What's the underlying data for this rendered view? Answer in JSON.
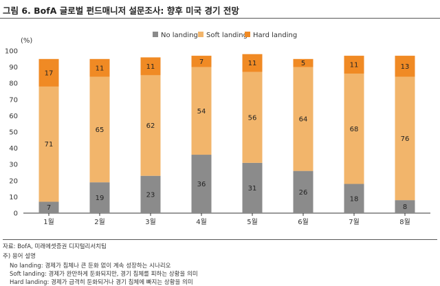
{
  "figure": {
    "title": "그림 6. BofA 글로벌 펀드매니저 설문조사: 향후 미국 경기 전망"
  },
  "chart_data": {
    "type": "stacked-bar",
    "categories": [
      "1월",
      "2월",
      "3월",
      "4월",
      "5월",
      "6월",
      "7월",
      "8월"
    ],
    "series": [
      {
        "name": "No landing",
        "color": "#8b8b8b",
        "values": [
          7,
          19,
          23,
          36,
          31,
          26,
          18,
          8
        ]
      },
      {
        "name": "Soft landing",
        "color": "#f2b56b",
        "values": [
          71,
          65,
          62,
          54,
          56,
          64,
          68,
          76
        ]
      },
      {
        "name": "Hard landing",
        "color": "#f08a24",
        "values": [
          17,
          11,
          11,
          7,
          11,
          5,
          11,
          13
        ]
      }
    ],
    "ylabel": "(%)",
    "ylim": [
      0,
      100
    ],
    "yticks": [
      0,
      10,
      20,
      30,
      40,
      50,
      60,
      70,
      80,
      90,
      100
    ],
    "legend_position": "top-center",
    "grid": false
  },
  "footer": {
    "source": "자료: BofA, 미래에셋증권 디지털리서치팀",
    "note_title": "주) 용어 설명",
    "notes": [
      "No landing: 경제가 침체나 큰 둔화 없이 계속 성장하는 시나리오",
      "Soft landing: 경제가 완만하게 둔화되지만, 경기 침체를 피하는 상황을 의미",
      "Hard landing: 경제가 급격히 둔화되거나 경기 침체에 빠지는 상황을 의미"
    ]
  }
}
